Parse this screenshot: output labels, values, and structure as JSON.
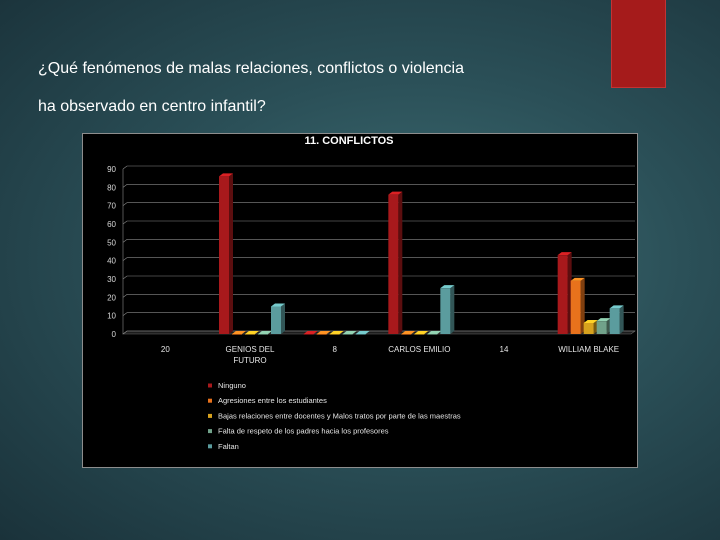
{
  "slide": {
    "question_line1": "¿Qué fenómenos de malas relaciones, conflictos o violencia",
    "question_line2": "ha observado en centro infantil?"
  },
  "colors": {
    "accent": "#a51b1b",
    "series": [
      "#a8191c",
      "#e8721c",
      "#d7a21e",
      "#71a28a",
      "#5b9c9e"
    ]
  },
  "chart_data": {
    "type": "bar",
    "title": "11. CONFLICTOS",
    "xlabel": "",
    "ylabel": "",
    "ylim": [
      0,
      90
    ],
    "yticks": [
      0,
      10,
      20,
      30,
      40,
      50,
      60,
      70,
      80,
      90
    ],
    "grid": true,
    "legend_position": "bottom",
    "categories": [
      "20",
      "GENIOS DEL FUTURO",
      "8",
      "CARLOS EMILIO",
      "14",
      "WILLIAM BLAKE"
    ],
    "category_lines": [
      [
        "20"
      ],
      [
        "GENIOS DEL",
        "FUTURO"
      ],
      [
        "8"
      ],
      [
        "CARLOS EMILIO"
      ],
      [
        "14"
      ],
      [
        "WILLIAM BLAKE"
      ]
    ],
    "series": [
      {
        "name": "Ninguno",
        "values": [
          null,
          86,
          0,
          76,
          null,
          43
        ]
      },
      {
        "name": "Agresiones entre los estudiantes",
        "values": [
          null,
          0,
          0,
          0,
          null,
          29
        ]
      },
      {
        "name": "Bajas relaciones entre docentes y Malos tratos por parte de las maestras",
        "values": [
          null,
          0,
          0,
          0,
          null,
          6
        ]
      },
      {
        "name": "Falta de respeto de los padres hacia los profesores",
        "values": [
          null,
          0,
          0,
          0,
          null,
          7
        ]
      },
      {
        "name": "Faltan",
        "values": [
          null,
          15,
          0,
          25,
          null,
          14
        ]
      }
    ]
  }
}
